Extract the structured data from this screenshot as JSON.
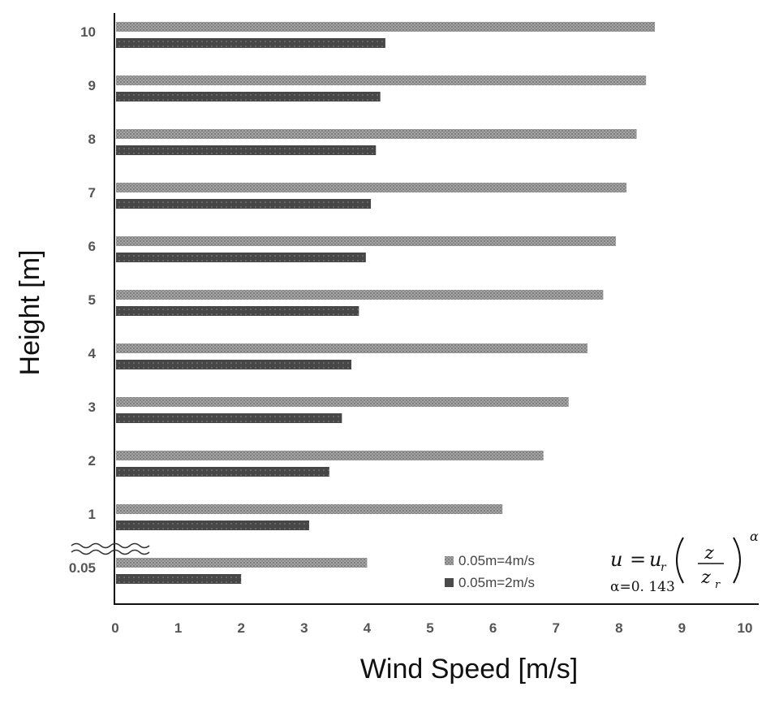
{
  "chart_data": {
    "type": "bar",
    "orientation": "horizontal",
    "categories": [
      "0.05",
      "1",
      "2",
      "3",
      "4",
      "5",
      "6",
      "7",
      "8",
      "9",
      "10"
    ],
    "series": [
      {
        "name": "0.05m=4m/s",
        "color": "#9a9a9a",
        "values": [
          4.0,
          6.15,
          6.8,
          7.2,
          7.5,
          7.75,
          7.95,
          8.12,
          8.28,
          8.43,
          8.57
        ]
      },
      {
        "name": "0.05m=2m/s",
        "color": "#4a4a4a",
        "values": [
          2.0,
          3.08,
          3.4,
          3.6,
          3.75,
          3.87,
          3.98,
          4.06,
          4.14,
          4.21,
          4.29
        ]
      }
    ],
    "xlabel": "Wind Speed [m/s]",
    "ylabel": "Height [m]",
    "xlim": [
      0,
      10
    ],
    "xticks": [
      "0",
      "1",
      "2",
      "3",
      "4",
      "5",
      "6",
      "7",
      "8",
      "9",
      "10"
    ],
    "axis_break": "between 0.05 and 1",
    "legend_position": "bottom-right",
    "grid": false,
    "annotations": {
      "formula_lhs": "u",
      "formula_eq": "=",
      "formula_ur": "u",
      "formula_ur_sub": "r",
      "formula_num": "z",
      "formula_den": "z",
      "formula_den_sub": "r",
      "formula_exp": "α",
      "alpha_label": "α=0. 143"
    }
  }
}
